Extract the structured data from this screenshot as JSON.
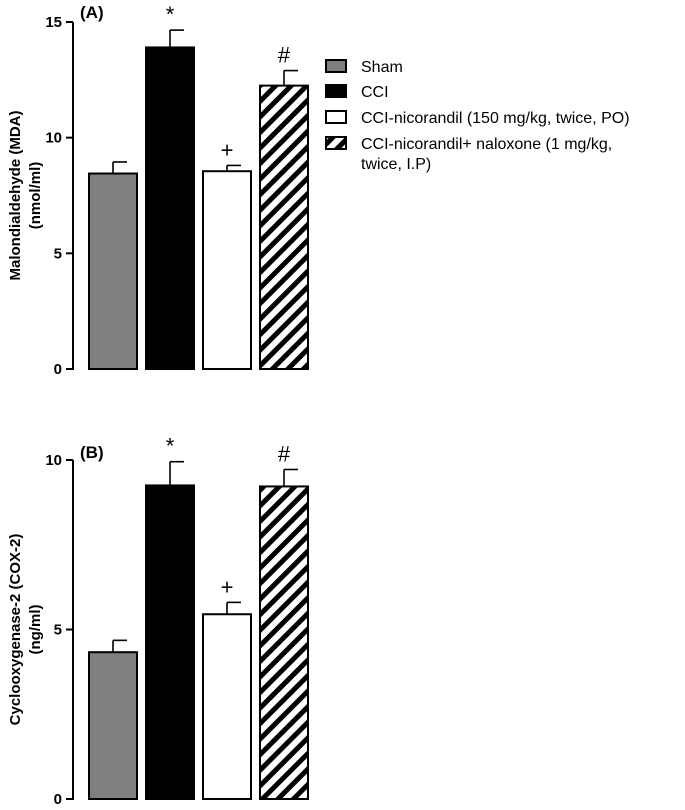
{
  "chart_data": [
    {
      "type": "bar",
      "panel_label": "(A)",
      "ylabel_lines": [
        "Malondialdehyde (MDA)",
        "(nmol/ml)"
      ],
      "ylim": [
        0,
        15
      ],
      "yticks": [
        0,
        5,
        10,
        15
      ],
      "categories": [
        "Sham",
        "CCI",
        "CCI-nicorandil (150 mg/kg, twice, PO)",
        "CCI-nicorandil+ naloxone (1 mg/kg, twice, I.P)"
      ],
      "values": [
        8.45,
        13.9,
        8.55,
        12.25
      ],
      "errors": [
        0.5,
        0.75,
        0.25,
        0.65
      ],
      "annotations": [
        "",
        "*",
        "+",
        "#"
      ]
    },
    {
      "type": "bar",
      "panel_label": "(B)",
      "ylabel_lines": [
        "Cyclooxygenase-2 (COX-2)",
        "(ng/ml)"
      ],
      "ylim": [
        0,
        10
      ],
      "yticks": [
        0,
        5,
        10
      ],
      "categories": [
        "Sham",
        "CCI",
        "CCI-nicorandil (150 mg/kg, twice, PO)",
        "CCI-nicorandil+ naloxone (1 mg/kg, twice, I.P)"
      ],
      "values": [
        4.33,
        9.25,
        5.45,
        9.22
      ],
      "errors": [
        0.35,
        0.7,
        0.35,
        0.5
      ],
      "annotations": [
        "",
        "*",
        "+",
        "#"
      ]
    }
  ],
  "legend": [
    {
      "key": "sham",
      "label_lines": [
        "Sham"
      ],
      "fill": "gray"
    },
    {
      "key": "cci",
      "label_lines": [
        "CCI"
      ],
      "fill": "black"
    },
    {
      "key": "nicorandil",
      "label_lines": [
        "CCI-nicorandil (150 mg/kg, twice, PO)"
      ],
      "fill": "white"
    },
    {
      "key": "naloxone",
      "label_lines": [
        "CCI-nicorandil+ naloxone (1 mg/kg,",
        "twice, I.P)"
      ],
      "fill": "hatch"
    }
  ],
  "colors": {
    "sham": "#7f7f7f",
    "cci": "#000000",
    "nicorandil": "#ffffff",
    "hatch_stroke": "#000000",
    "outline": "#000000"
  }
}
